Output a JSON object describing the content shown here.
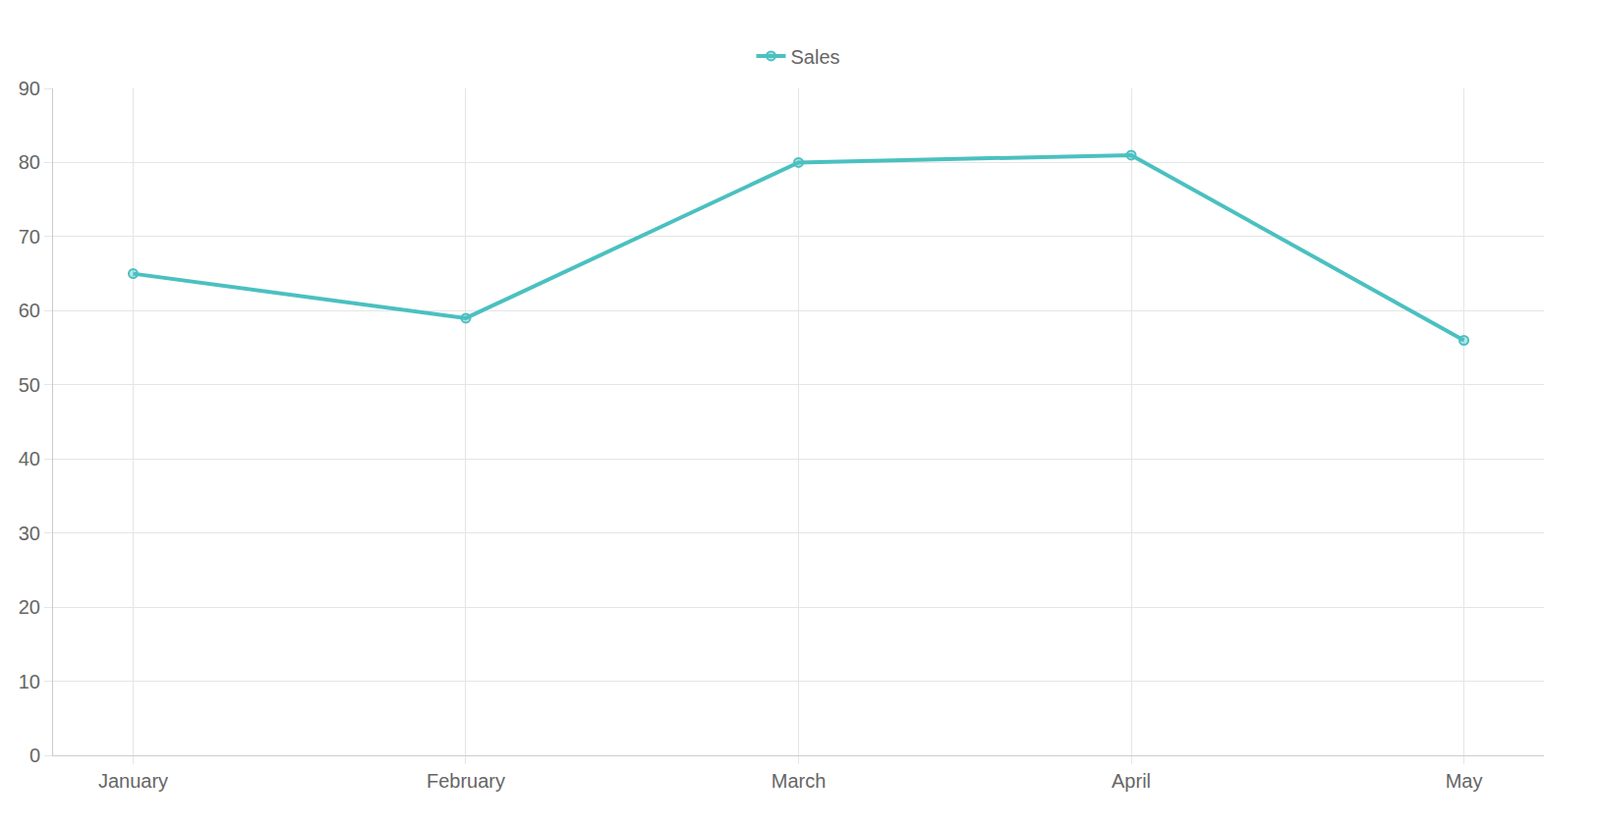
{
  "chart_data": {
    "type": "line",
    "categories": [
      "January",
      "February",
      "March",
      "April",
      "May"
    ],
    "series": [
      {
        "name": "Sales",
        "color": "#4bc0c0",
        "values": [
          65,
          59,
          80,
          81,
          56
        ]
      }
    ],
    "ylim": [
      0,
      90
    ],
    "yticks": [
      0,
      10,
      20,
      30,
      40,
      50,
      60,
      70,
      80,
      90
    ],
    "grid": true,
    "legend": "top",
    "marker": "circle",
    "line_style": "solid"
  }
}
